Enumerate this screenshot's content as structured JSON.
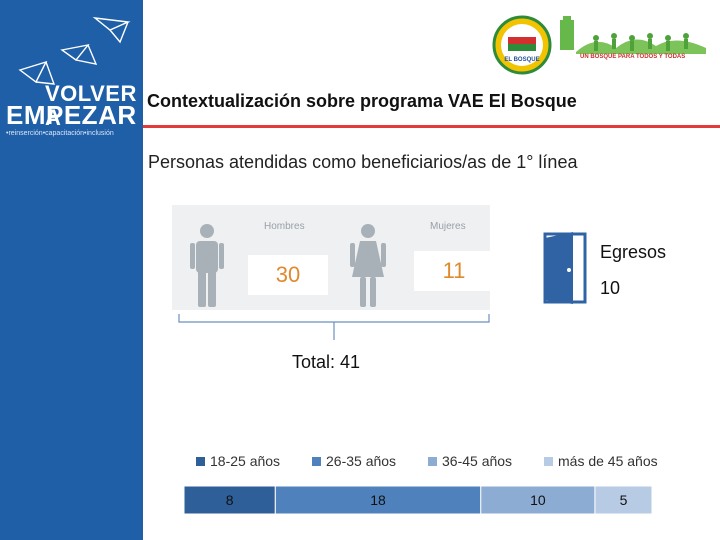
{
  "brand": {
    "line1": "VOLVER A",
    "line2": "EMPEZAR",
    "tagline": "•reinserción•capacitación•inclusión"
  },
  "header": {
    "title": "Contextualización sobre programa VAE El Bosque",
    "subtitle": "Personas atendidas como beneficiarios/as de 1° línea",
    "seal_text": "EL BOSQUE",
    "town_caption": "UN BOSQUE PARA TODOS Y TODAS"
  },
  "gender": {
    "men_label": "Hombres",
    "men_count": "30",
    "women_label": "Mujeres",
    "women_count": "11"
  },
  "total_label": "Total: 41",
  "egresos": {
    "label": "Egresos",
    "value": "10"
  },
  "colors": {
    "sidebar": "#1f5fa8",
    "accent_rule": "#e23b3b",
    "count_text": "#e08a2e",
    "door": "#2f63a4",
    "figure": "#a9b1b8"
  },
  "chart_data": {
    "type": "bar",
    "orientation": "horizontal-stacked",
    "categories": [
      "18-25 años",
      "26-35 años",
      "36-45 años",
      "más de 45 años"
    ],
    "values": [
      8,
      18,
      10,
      5
    ],
    "colors": [
      "#2f5f98",
      "#4f81bd",
      "#8cacd4",
      "#b7cbe4"
    ],
    "legend_position": "top",
    "title": "",
    "xlabel": "",
    "ylabel": ""
  }
}
